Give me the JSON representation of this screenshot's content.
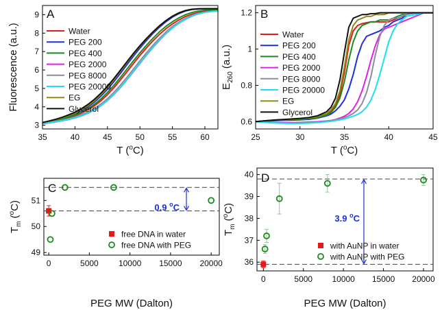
{
  "chart_data": [
    {
      "panel": "A",
      "type": "line",
      "xlabel": "T (°C)",
      "ylabel": "Fluorescence (a.u.)",
      "xlim": [
        35,
        62
      ],
      "ylim": [
        2.8,
        9.5
      ],
      "xticks": [
        35,
        40,
        45,
        50,
        55,
        60
      ],
      "yticks": [
        3,
        4,
        5,
        6,
        7,
        8,
        9
      ],
      "legend_position": "top-left",
      "x": [
        35,
        36,
        37,
        38,
        39,
        40,
        41,
        42,
        43,
        44,
        45,
        46,
        47,
        48,
        49,
        50,
        51,
        52,
        53,
        54,
        55,
        56,
        57,
        58,
        59,
        60,
        61,
        62
      ],
      "series": [
        {
          "name": "Water",
          "color": "#e31a1c",
          "values": [
            3.12,
            3.18,
            3.24,
            3.32,
            3.41,
            3.52,
            3.66,
            3.84,
            4.06,
            4.33,
            4.66,
            5.04,
            5.46,
            5.9,
            6.35,
            6.79,
            7.2,
            7.58,
            7.93,
            8.24,
            8.5,
            8.72,
            8.9,
            9.03,
            9.12,
            9.18,
            9.2,
            9.21
          ]
        },
        {
          "name": "PEG 200",
          "color": "#1b2ee0",
          "values": [
            3.14,
            3.21,
            3.29,
            3.38,
            3.49,
            3.62,
            3.79,
            4.0,
            4.26,
            4.58,
            4.95,
            5.37,
            5.82,
            6.29,
            6.75,
            7.19,
            7.6,
            7.98,
            8.32,
            8.62,
            8.87,
            9.06,
            9.2,
            9.28,
            9.31,
            9.32,
            9.32,
            9.32
          ]
        },
        {
          "name": "PEG 400",
          "color": "#1a8a1a",
          "values": [
            3.13,
            3.19,
            3.26,
            3.34,
            3.44,
            3.56,
            3.71,
            3.9,
            4.14,
            4.43,
            4.78,
            5.17,
            5.6,
            6.05,
            6.5,
            6.93,
            7.34,
            7.72,
            8.07,
            8.37,
            8.62,
            8.83,
            9.0,
            9.12,
            9.2,
            9.24,
            9.26,
            9.27
          ]
        },
        {
          "name": "PEG 2000",
          "color": "#e020e0",
          "values": [
            3.08,
            3.13,
            3.18,
            3.24,
            3.31,
            3.4,
            3.51,
            3.65,
            3.83,
            4.06,
            4.34,
            4.67,
            5.05,
            5.47,
            5.91,
            6.36,
            6.8,
            7.22,
            7.61,
            7.97,
            8.28,
            8.54,
            8.75,
            8.92,
            9.05,
            9.13,
            9.18,
            9.2
          ]
        },
        {
          "name": "PEG 8000",
          "color": "#8c8c9c",
          "values": [
            3.1,
            3.15,
            3.21,
            3.27,
            3.35,
            3.45,
            3.57,
            3.72,
            3.91,
            4.15,
            4.44,
            4.79,
            5.18,
            5.6,
            6.05,
            6.5,
            6.93,
            7.34,
            7.72,
            8.06,
            8.36,
            8.6,
            8.8,
            8.96,
            9.07,
            9.14,
            9.18,
            9.2
          ]
        },
        {
          "name": "PEG 20000",
          "color": "#19e0f0",
          "values": [
            3.09,
            3.14,
            3.19,
            3.25,
            3.32,
            3.41,
            3.52,
            3.66,
            3.84,
            4.07,
            4.35,
            4.68,
            5.06,
            5.48,
            5.93,
            6.38,
            6.82,
            7.24,
            7.63,
            7.98,
            8.29,
            8.55,
            8.76,
            8.93,
            9.05,
            9.13,
            9.18,
            9.2
          ]
        },
        {
          "name": "EG",
          "color": "#8f8a10",
          "values": [
            3.15,
            3.22,
            3.3,
            3.4,
            3.52,
            3.66,
            3.84,
            4.06,
            4.33,
            4.66,
            5.04,
            5.47,
            5.93,
            6.4,
            6.86,
            7.29,
            7.69,
            8.06,
            8.39,
            8.68,
            8.92,
            9.1,
            9.23,
            9.3,
            9.33,
            9.33,
            9.33,
            9.33
          ]
        },
        {
          "name": "Glycerol",
          "color": "#111111",
          "values": [
            3.15,
            3.23,
            3.32,
            3.43,
            3.56,
            3.71,
            3.9,
            4.13,
            4.41,
            4.74,
            5.12,
            5.54,
            5.99,
            6.45,
            6.9,
            7.32,
            7.71,
            8.07,
            8.4,
            8.68,
            8.92,
            9.1,
            9.22,
            9.29,
            9.32,
            9.33,
            9.33,
            9.33
          ]
        }
      ]
    },
    {
      "panel": "B",
      "type": "line",
      "xlabel": "T (°C)",
      "ylabel": "E260 (a.u.)",
      "xlim": [
        25,
        45
      ],
      "ylim": [
        0.56,
        1.24
      ],
      "xticks": [
        25,
        30,
        35,
        40,
        45
      ],
      "yticks": [
        0.6,
        0.8,
        1.0,
        1.2
      ],
      "legend_position": "top-left",
      "x": [
        25,
        26,
        27,
        28,
        29,
        30,
        31,
        32,
        33,
        33.5,
        34,
        34.5,
        35,
        35.5,
        36,
        36.5,
        37,
        37.5,
        38,
        38.5,
        39,
        39.5,
        40,
        40.5,
        41,
        41.5,
        42,
        43,
        44,
        45
      ],
      "series": [
        {
          "name": "Water",
          "color": "#e31a1c",
          "values": [
            0.6,
            0.604,
            0.607,
            0.61,
            0.612,
            0.614,
            0.618,
            0.625,
            0.64,
            0.655,
            0.69,
            0.75,
            0.87,
            1.02,
            1.1,
            1.13,
            1.14,
            1.145,
            1.15,
            1.15,
            1.15,
            1.15,
            1.15,
            1.16,
            1.17,
            1.18,
            1.19,
            1.2,
            1.2,
            1.2
          ]
        },
        {
          "name": "PEG 200",
          "color": "#1b2ee0",
          "values": [
            0.6,
            0.603,
            0.605,
            0.607,
            0.608,
            0.61,
            0.613,
            0.62,
            0.632,
            0.642,
            0.66,
            0.685,
            0.72,
            0.78,
            0.86,
            0.96,
            1.03,
            1.07,
            1.08,
            1.09,
            1.1,
            1.12,
            1.13,
            1.15,
            1.16,
            1.17,
            1.19,
            1.2,
            1.2,
            1.2
          ]
        },
        {
          "name": "PEG 400",
          "color": "#1a8a1a",
          "values": [
            0.6,
            0.604,
            0.607,
            0.609,
            0.611,
            0.613,
            0.616,
            0.622,
            0.636,
            0.65,
            0.68,
            0.73,
            0.82,
            0.94,
            1.04,
            1.1,
            1.13,
            1.14,
            1.15,
            1.15,
            1.16,
            1.16,
            1.16,
            1.17,
            1.18,
            1.19,
            1.19,
            1.2,
            1.2,
            1.2
          ]
        },
        {
          "name": "PEG 2000",
          "color": "#e020e0",
          "values": [
            0.6,
            0.598,
            0.596,
            0.595,
            0.595,
            0.596,
            0.598,
            0.6,
            0.604,
            0.607,
            0.612,
            0.62,
            0.63,
            0.645,
            0.67,
            0.71,
            0.77,
            0.85,
            0.94,
            1.02,
            1.08,
            1.11,
            1.12,
            1.13,
            1.14,
            1.15,
            1.16,
            1.18,
            1.2,
            1.2
          ]
        },
        {
          "name": "PEG 8000",
          "color": "#8c8c9c",
          "values": [
            0.6,
            0.597,
            0.594,
            0.592,
            0.592,
            0.593,
            0.595,
            0.598,
            0.602,
            0.605,
            0.61,
            0.615,
            0.622,
            0.632,
            0.645,
            0.665,
            0.7,
            0.76,
            0.85,
            0.97,
            1.07,
            1.13,
            1.16,
            1.17,
            1.17,
            1.18,
            1.19,
            1.2,
            1.2,
            1.2
          ]
        },
        {
          "name": "PEG 20000",
          "color": "#19e0f0",
          "values": [
            0.6,
            0.596,
            0.593,
            0.591,
            0.59,
            0.59,
            0.592,
            0.595,
            0.599,
            0.602,
            0.606,
            0.61,
            0.615,
            0.622,
            0.63,
            0.64,
            0.655,
            0.68,
            0.72,
            0.78,
            0.86,
            0.95,
            1.04,
            1.1,
            1.14,
            1.16,
            1.18,
            1.19,
            1.2,
            1.2
          ]
        },
        {
          "name": "EG",
          "color": "#8f8a10",
          "values": [
            0.6,
            0.605,
            0.608,
            0.611,
            0.613,
            0.616,
            0.62,
            0.628,
            0.645,
            0.665,
            0.7,
            0.77,
            0.9,
            1.05,
            1.13,
            1.16,
            1.17,
            1.18,
            1.18,
            1.19,
            1.19,
            1.19,
            1.2,
            1.2,
            1.2,
            1.2,
            1.2,
            1.2,
            1.2,
            1.2
          ]
        },
        {
          "name": "Glycerol",
          "color": "#111111",
          "values": [
            0.6,
            0.605,
            0.609,
            0.612,
            0.615,
            0.618,
            0.623,
            0.633,
            0.655,
            0.68,
            0.73,
            0.83,
            0.98,
            1.12,
            1.17,
            1.18,
            1.19,
            1.19,
            1.195,
            1.195,
            1.2,
            1.2,
            1.2,
            1.2,
            1.2,
            1.2,
            1.2,
            1.2,
            1.2,
            1.2
          ]
        }
      ]
    },
    {
      "panel": "C",
      "type": "scatter",
      "xlabel": "PEG MW (Dalton)",
      "ylabel": "Tm (°C)",
      "xlim": [
        -600,
        21000
      ],
      "ylim": [
        48.9,
        51.85
      ],
      "xticks": [
        0,
        5000,
        10000,
        15000,
        20000
      ],
      "yticks": [
        49,
        50,
        51
      ],
      "legend_position": "bottom-right",
      "reference_lines": [
        51.5,
        50.6
      ],
      "annotation": "0.9 °C",
      "series": [
        {
          "name": "free DNA in water",
          "marker": "filled-square",
          "color": "#e31a1c",
          "points": [
            {
              "x": 0,
              "y": 50.6,
              "err": 0.2
            }
          ]
        },
        {
          "name": "free DNA with PEG",
          "marker": "open-circle",
          "color": "#1a8a1a",
          "points": [
            {
              "x": 200,
              "y": 49.5,
              "err": 0
            },
            {
              "x": 400,
              "y": 50.5,
              "err": 0
            },
            {
              "x": 2000,
              "y": 51.5,
              "err": 0
            },
            {
              "x": 8000,
              "y": 51.5,
              "err": 0
            },
            {
              "x": 20000,
              "y": 51.0,
              "err": 0
            }
          ]
        }
      ]
    },
    {
      "panel": "D",
      "type": "scatter",
      "xlabel": "PEG MW (Dalton)",
      "ylabel": "Tm (°C)",
      "xlim": [
        -800,
        21200
      ],
      "ylim": [
        35.6,
        40.3
      ],
      "xticks": [
        0,
        5000,
        10000,
        15000,
        20000
      ],
      "yticks": [
        36,
        37,
        38,
        39,
        40
      ],
      "legend_position": "bottom-right",
      "reference_lines": [
        39.8,
        35.9
      ],
      "annotation": "3.9 °C",
      "series": [
        {
          "name": "with AuNP in water",
          "marker": "filled-square",
          "color": "#e31a1c",
          "points": [
            {
              "x": 0,
              "y": 35.9,
              "err": 0.15
            }
          ]
        },
        {
          "name": "with AuNP with PEG",
          "marker": "open-circle",
          "color": "#1a8a1a",
          "points": [
            {
              "x": 200,
              "y": 36.6,
              "err": 0.2
            },
            {
              "x": 400,
              "y": 37.2,
              "err": 0.3
            },
            {
              "x": 2000,
              "y": 38.9,
              "err": 0.7
            },
            {
              "x": 8000,
              "y": 39.6,
              "err": 0.4
            },
            {
              "x": 20000,
              "y": 39.75,
              "err": 0.25
            }
          ]
        }
      ]
    }
  ]
}
